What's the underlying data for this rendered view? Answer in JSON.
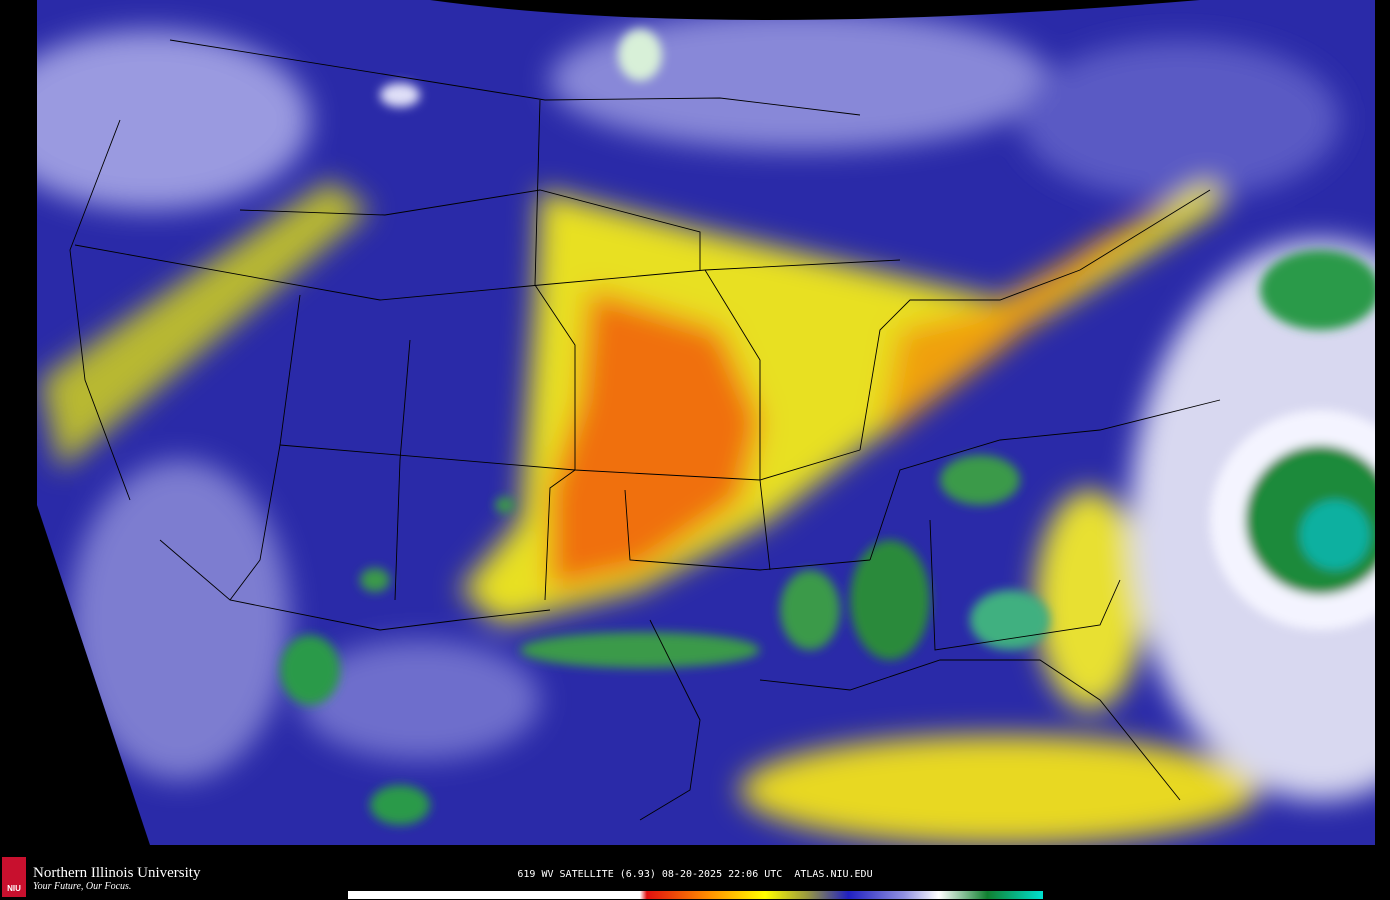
{
  "logo": {
    "mark": "NIU",
    "name": "Northern Illinois University",
    "tagline": "Your Future, Our Focus."
  },
  "caption": "619 WV SATELLITE (6.93) 08-20-2025 22:06 UTC  ATLAS.NIU.EDU"
}
